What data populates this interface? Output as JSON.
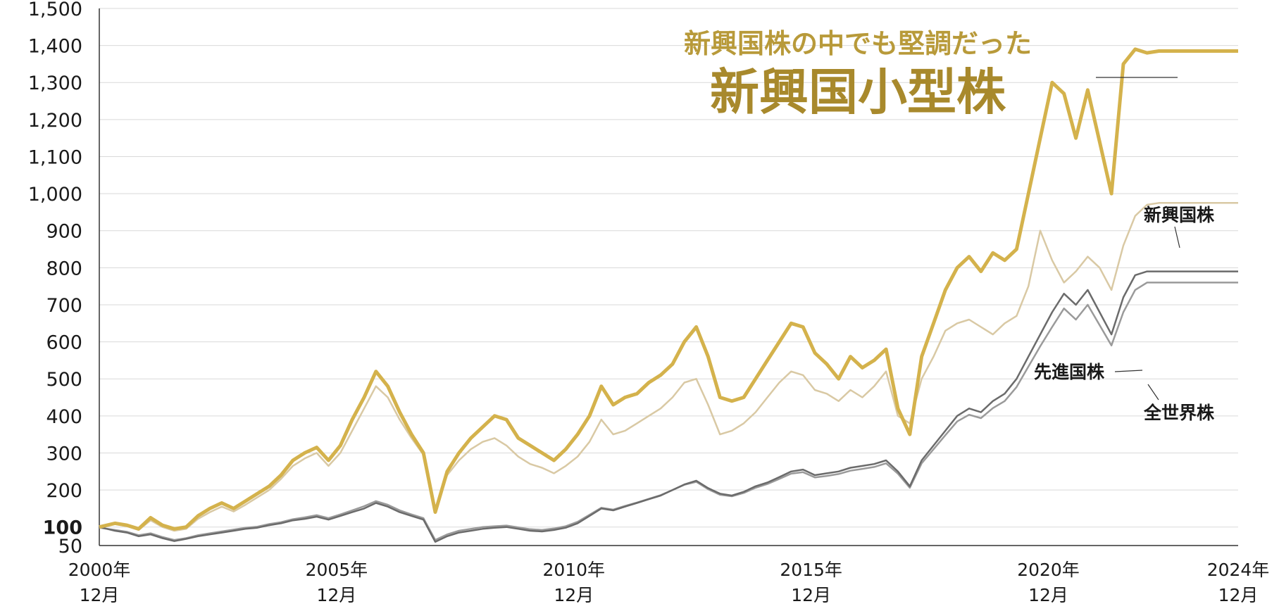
{
  "chart_data": {
    "type": "line",
    "title": "",
    "xlabel": "",
    "ylabel": "",
    "ylim": [
      50,
      1500
    ],
    "y_ticks": [
      50,
      100,
      200,
      300,
      400,
      500,
      600,
      700,
      800,
      900,
      1000,
      1100,
      1200,
      1300,
      1400,
      1500
    ],
    "y_tick_labels": [
      "50",
      "100",
      "200",
      "300",
      "400",
      "500",
      "600",
      "700",
      "800",
      "900",
      "1,000",
      "1,100",
      "1,200",
      "1,300",
      "1,400",
      "1,500"
    ],
    "y_tick_bold": "100",
    "xlim": [
      2000.92,
      2024.92
    ],
    "x_ticks": [
      {
        "x": 2000.92,
        "line1": "2000年",
        "line2": "12月"
      },
      {
        "x": 2005.92,
        "line1": "2005年",
        "line2": "12月"
      },
      {
        "x": 2010.92,
        "line1": "2010年",
        "line2": "12月"
      },
      {
        "x": 2015.92,
        "line1": "2015年",
        "line2": "12月"
      },
      {
        "x": 2020.92,
        "line1": "2020年",
        "line2": "12月"
      },
      {
        "x": 2024.92,
        "line1": "2024年",
        "line2": "12月"
      }
    ],
    "grid": true,
    "legend": "none",
    "annotation": {
      "sub": "新興国株の中でも堅調だった",
      "main": "新興国小型株"
    },
    "series": [
      {
        "name": "新興国小型株",
        "color": "#d4b24c",
        "x": [
          2000.92,
          2001.25,
          2001.5,
          2001.75,
          2002.0,
          2002.25,
          2002.5,
          2002.75,
          2003.0,
          2003.25,
          2003.5,
          2003.75,
          2004.0,
          2004.25,
          2004.5,
          2004.75,
          2005.0,
          2005.25,
          2005.5,
          2005.75,
          2006.0,
          2006.25,
          2006.5,
          2006.75,
          2007.0,
          2007.25,
          2007.5,
          2007.75,
          2008.0,
          2008.25,
          2008.5,
          2008.75,
          2009.0,
          2009.25,
          2009.5,
          2009.75,
          2010.0,
          2010.25,
          2010.5,
          2010.75,
          2011.0,
          2011.25,
          2011.5,
          2011.75,
          2012.0,
          2012.25,
          2012.5,
          2012.75,
          2013.0,
          2013.25,
          2013.5,
          2013.75,
          2014.0,
          2014.25,
          2014.5,
          2014.75,
          2015.0,
          2015.25,
          2015.5,
          2015.75,
          2016.0,
          2016.25,
          2016.5,
          2016.75,
          2017.0,
          2017.25,
          2017.5,
          2017.75,
          2018.0,
          2018.25,
          2018.5,
          2018.75,
          2019.0,
          2019.25,
          2019.5,
          2019.75,
          2020.0,
          2020.25,
          2020.5,
          2020.75,
          2021.0,
          2021.25,
          2021.5,
          2021.75,
          2022.0,
          2022.25,
          2022.5,
          2022.75,
          2023.0,
          2023.25,
          2023.5,
          2023.75,
          2024.0,
          2024.25,
          2024.5,
          2024.75,
          2024.92
        ],
        "values": [
          100,
          110,
          105,
          95,
          125,
          105,
          95,
          100,
          130,
          150,
          165,
          150,
          170,
          190,
          210,
          240,
          280,
          300,
          315,
          280,
          320,
          390,
          450,
          520,
          480,
          410,
          350,
          300,
          140,
          250,
          300,
          340,
          370,
          400,
          390,
          340,
          320,
          300,
          280,
          310,
          350,
          400,
          480,
          430,
          450,
          460,
          490,
          510,
          540,
          600,
          640,
          560,
          450,
          440,
          450,
          500,
          550,
          600,
          650,
          640,
          570,
          540,
          500,
          560,
          530,
          550,
          580,
          420,
          350,
          560,
          650,
          740,
          800,
          830,
          790,
          840,
          820,
          850,
          1000,
          1150,
          1300,
          1270,
          1150,
          1280,
          1140,
          1000,
          1350,
          1390,
          1380,
          1385,
          1385,
          1385,
          1385,
          1385,
          1385,
          1385,
          1385
        ]
      },
      {
        "name": "新興国株",
        "color": "#d9c9a4",
        "x": [
          2000.92,
          2001.25,
          2001.5,
          2001.75,
          2002.0,
          2002.25,
          2002.5,
          2002.75,
          2003.0,
          2003.25,
          2003.5,
          2003.75,
          2004.0,
          2004.25,
          2004.5,
          2004.75,
          2005.0,
          2005.25,
          2005.5,
          2005.75,
          2006.0,
          2006.25,
          2006.5,
          2006.75,
          2007.0,
          2007.25,
          2007.5,
          2007.75,
          2008.0,
          2008.25,
          2008.5,
          2008.75,
          2009.0,
          2009.25,
          2009.5,
          2009.75,
          2010.0,
          2010.25,
          2010.5,
          2010.75,
          2011.0,
          2011.25,
          2011.5,
          2011.75,
          2012.0,
          2012.25,
          2012.5,
          2012.75,
          2013.0,
          2013.25,
          2013.5,
          2013.75,
          2014.0,
          2014.25,
          2014.5,
          2014.75,
          2015.0,
          2015.25,
          2015.5,
          2015.75,
          2016.0,
          2016.25,
          2016.5,
          2016.75,
          2017.0,
          2017.25,
          2017.5,
          2017.75,
          2018.0,
          2018.25,
          2018.5,
          2018.75,
          2019.0,
          2019.25,
          2019.5,
          2019.75,
          2020.0,
          2020.25,
          2020.5,
          2020.75,
          2021.0,
          2021.25,
          2021.5,
          2021.75,
          2022.0,
          2022.25,
          2022.5,
          2022.75,
          2023.0,
          2023.25,
          2023.5,
          2023.75,
          2024.0,
          2024.25,
          2024.5,
          2024.75,
          2024.92
        ],
        "values": [
          100,
          108,
          102,
          92,
          118,
          100,
          90,
          95,
          122,
          140,
          155,
          142,
          160,
          180,
          200,
          230,
          265,
          285,
          300,
          265,
          300,
          360,
          420,
          480,
          450,
          390,
          340,
          295,
          150,
          240,
          280,
          310,
          330,
          340,
          320,
          290,
          270,
          260,
          245,
          265,
          290,
          330,
          390,
          350,
          360,
          380,
          400,
          420,
          450,
          490,
          500,
          430,
          350,
          360,
          380,
          410,
          450,
          490,
          520,
          510,
          470,
          460,
          440,
          470,
          450,
          480,
          520,
          400,
          380,
          500,
          560,
          630,
          650,
          660,
          640,
          620,
          650,
          670,
          750,
          900,
          820,
          760,
          790,
          830,
          800,
          740,
          860,
          940,
          970,
          975,
          975,
          975,
          975,
          975,
          975,
          975,
          975
        ]
      },
      {
        "name": "先進国株",
        "color": "#6b6b6b",
        "x": [
          2000.92,
          2001.25,
          2001.5,
          2001.75,
          2002.0,
          2002.25,
          2002.5,
          2002.75,
          2003.0,
          2003.25,
          2003.5,
          2003.75,
          2004.0,
          2004.25,
          2004.5,
          2004.75,
          2005.0,
          2005.25,
          2005.5,
          2005.75,
          2006.0,
          2006.25,
          2006.5,
          2006.75,
          2007.0,
          2007.25,
          2007.5,
          2007.75,
          2008.0,
          2008.25,
          2008.5,
          2008.75,
          2009.0,
          2009.25,
          2009.5,
          2009.75,
          2010.0,
          2010.25,
          2010.5,
          2010.75,
          2011.0,
          2011.25,
          2011.5,
          2011.75,
          2012.0,
          2012.25,
          2012.5,
          2012.75,
          2013.0,
          2013.25,
          2013.5,
          2013.75,
          2014.0,
          2014.25,
          2014.5,
          2014.75,
          2015.0,
          2015.25,
          2015.5,
          2015.75,
          2016.0,
          2016.25,
          2016.5,
          2016.75,
          2017.0,
          2017.25,
          2017.5,
          2017.75,
          2018.0,
          2018.25,
          2018.5,
          2018.75,
          2019.0,
          2019.25,
          2019.5,
          2019.75,
          2020.0,
          2020.25,
          2020.5,
          2020.75,
          2021.0,
          2021.25,
          2021.5,
          2021.75,
          2022.0,
          2022.25,
          2022.5,
          2022.75,
          2023.0,
          2023.25,
          2023.5,
          2023.75,
          2024.0,
          2024.25,
          2024.5,
          2024.75,
          2024.92
        ],
        "values": [
          100,
          90,
          85,
          75,
          80,
          70,
          62,
          68,
          75,
          80,
          85,
          90,
          95,
          98,
          105,
          110,
          118,
          122,
          128,
          120,
          130,
          140,
          150,
          165,
          155,
          140,
          130,
          120,
          60,
          75,
          85,
          90,
          95,
          98,
          100,
          95,
          90,
          88,
          92,
          98,
          110,
          130,
          150,
          145,
          155,
          165,
          175,
          185,
          200,
          215,
          225,
          205,
          190,
          185,
          195,
          210,
          220,
          235,
          250,
          255,
          240,
          245,
          250,
          260,
          265,
          270,
          280,
          250,
          210,
          280,
          320,
          360,
          400,
          420,
          410,
          440,
          460,
          500,
          560,
          620,
          680,
          730,
          700,
          740,
          680,
          620,
          720,
          780,
          790,
          790,
          790,
          790,
          790,
          790,
          790,
          790,
          790
        ]
      },
      {
        "name": "全世界株",
        "color": "#9a9a9a",
        "x": [
          2000.92,
          2001.25,
          2001.5,
          2001.75,
          2002.0,
          2002.25,
          2002.5,
          2002.75,
          2003.0,
          2003.25,
          2003.5,
          2003.75,
          2004.0,
          2004.25,
          2004.5,
          2004.75,
          2005.0,
          2005.25,
          2005.5,
          2005.75,
          2006.0,
          2006.25,
          2006.5,
          2006.75,
          2007.0,
          2007.25,
          2007.5,
          2007.75,
          2008.0,
          2008.25,
          2008.5,
          2008.75,
          2009.0,
          2009.25,
          2009.5,
          2009.75,
          2010.0,
          2010.25,
          2010.5,
          2010.75,
          2011.0,
          2011.25,
          2011.5,
          2011.75,
          2012.0,
          2012.25,
          2012.5,
          2012.75,
          2013.0,
          2013.25,
          2013.5,
          2013.75,
          2014.0,
          2014.25,
          2014.5,
          2014.75,
          2015.0,
          2015.25,
          2015.5,
          2015.75,
          2016.0,
          2016.25,
          2016.5,
          2016.75,
          2017.0,
          2017.25,
          2017.5,
          2017.75,
          2018.0,
          2018.25,
          2018.5,
          2018.75,
          2019.0,
          2019.25,
          2019.5,
          2019.75,
          2020.0,
          2020.25,
          2020.5,
          2020.75,
          2021.0,
          2021.25,
          2021.5,
          2021.75,
          2022.0,
          2022.25,
          2022.5,
          2022.75,
          2023.0,
          2023.25,
          2023.5,
          2023.75,
          2024.0,
          2024.25,
          2024.5,
          2024.75,
          2024.92
        ],
        "values": [
          98,
          92,
          87,
          78,
          83,
          73,
          65,
          70,
          78,
          83,
          88,
          93,
          98,
          101,
          108,
          113,
          121,
          126,
          132,
          124,
          134,
          145,
          156,
          170,
          160,
          145,
          134,
          124,
          65,
          80,
          90,
          95,
          100,
          102,
          104,
          99,
          94,
          92,
          96,
          102,
          114,
          133,
          152,
          147,
          157,
          166,
          176,
          186,
          200,
          214,
          222,
          202,
          187,
          183,
          192,
          206,
          216,
          230,
          244,
          248,
          234,
          238,
          243,
          252,
          257,
          262,
          272,
          244,
          206,
          272,
          310,
          348,
          385,
          403,
          394,
          421,
          440,
          478,
          533,
          588,
          640,
          690,
          660,
          700,
          645,
          590,
          680,
          740,
          760,
          760,
          760,
          760,
          760,
          760,
          760,
          760,
          760
        ]
      }
    ],
    "series_labels": [
      {
        "series": "新興国株",
        "text": "新興国株"
      },
      {
        "series": "先進国株",
        "text": "先進国株"
      },
      {
        "series": "全世界株",
        "text": "全世界株"
      }
    ]
  }
}
